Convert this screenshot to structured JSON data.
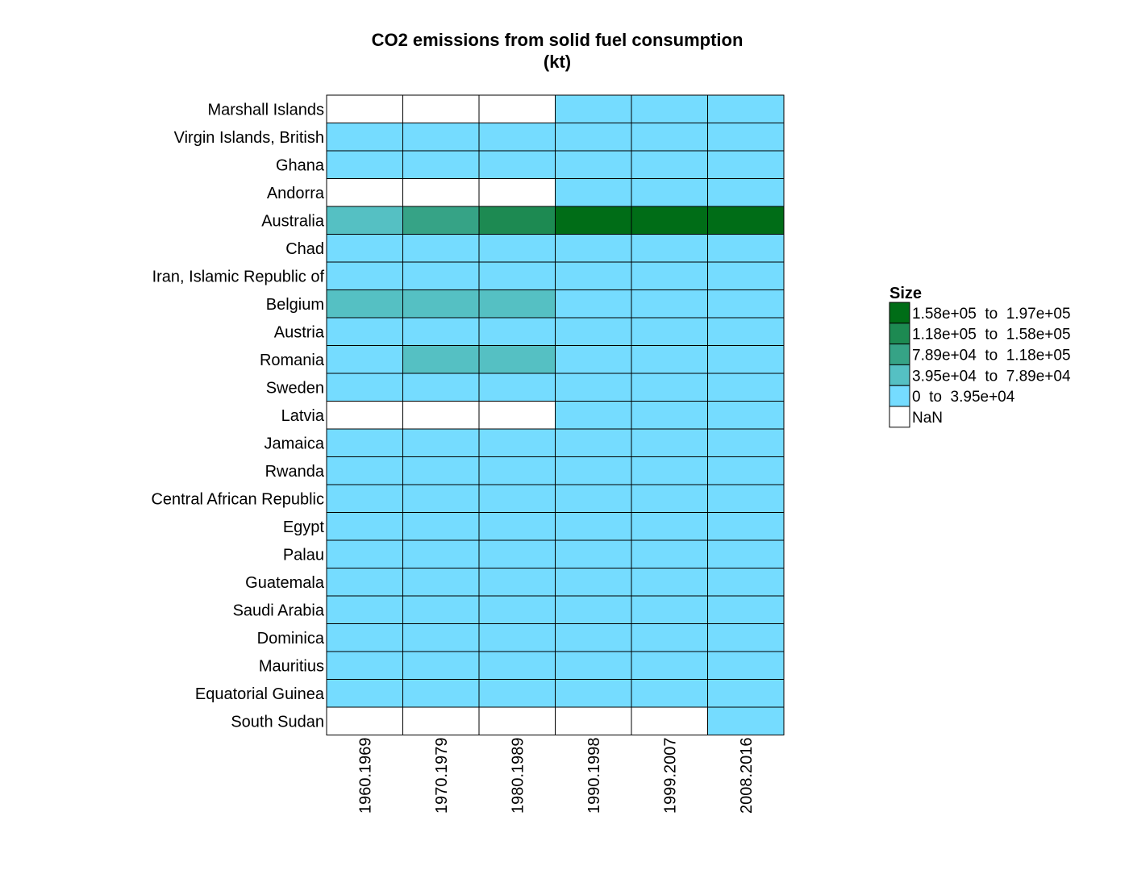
{
  "chart_data": {
    "type": "heatmap",
    "title_lines": [
      "CO2 emissions from solid fuel consumption",
      "(kt)"
    ],
    "columns": [
      "1960.1969",
      "1970.1979",
      "1980.1989",
      "1990.1998",
      "1999.2007",
      "2008.2016"
    ],
    "rows": [
      "Marshall Islands",
      "Virgin Islands, British",
      "Ghana",
      "Andorra",
      "Australia",
      "Chad",
      "Iran, Islamic Republic of",
      "Belgium",
      "Austria",
      "Romania",
      "Sweden",
      "Latvia",
      "Jamaica",
      "Rwanda",
      "Central African Republic",
      "Egypt",
      "Palau",
      "Guatemala",
      "Saudi Arabia",
      "Dominica",
      "Mauritius",
      "Equatorial Guinea",
      "South Sudan"
    ],
    "bins": [
      {
        "label": "1.58e+05  to  1.97e+05",
        "color": "#006D17"
      },
      {
        "label": "1.18e+05  to  1.58e+05",
        "color": "#1D8A52"
      },
      {
        "label": "7.89e+04  to  1.18e+05",
        "color": "#36A386"
      },
      {
        "label": "3.95e+04  to  7.89e+04",
        "color": "#55C0C3"
      },
      {
        "label": "0  to  3.95e+04",
        "color": "#75DCFF"
      },
      {
        "label": "NaN",
        "color": "#FFFFFF"
      }
    ],
    "legend_title": "Size",
    "legend_position": "right",
    "cell_bins": [
      [
        5,
        5,
        5,
        4,
        4,
        4
      ],
      [
        4,
        4,
        4,
        4,
        4,
        4
      ],
      [
        4,
        4,
        4,
        4,
        4,
        4
      ],
      [
        5,
        5,
        5,
        4,
        4,
        4
      ],
      [
        3,
        2,
        1,
        0,
        0,
        0
      ],
      [
        4,
        4,
        4,
        4,
        4,
        4
      ],
      [
        4,
        4,
        4,
        4,
        4,
        4
      ],
      [
        3,
        3,
        3,
        4,
        4,
        4
      ],
      [
        4,
        4,
        4,
        4,
        4,
        4
      ],
      [
        4,
        3,
        3,
        4,
        4,
        4
      ],
      [
        4,
        4,
        4,
        4,
        4,
        4
      ],
      [
        5,
        5,
        5,
        4,
        4,
        4
      ],
      [
        4,
        4,
        4,
        4,
        4,
        4
      ],
      [
        4,
        4,
        4,
        4,
        4,
        4
      ],
      [
        4,
        4,
        4,
        4,
        4,
        4
      ],
      [
        4,
        4,
        4,
        4,
        4,
        4
      ],
      [
        4,
        4,
        4,
        4,
        4,
        4
      ],
      [
        4,
        4,
        4,
        4,
        4,
        4
      ],
      [
        4,
        4,
        4,
        4,
        4,
        4
      ],
      [
        4,
        4,
        4,
        4,
        4,
        4
      ],
      [
        4,
        4,
        4,
        4,
        4,
        4
      ],
      [
        4,
        4,
        4,
        4,
        4,
        4
      ],
      [
        5,
        5,
        5,
        5,
        5,
        4
      ]
    ]
  }
}
